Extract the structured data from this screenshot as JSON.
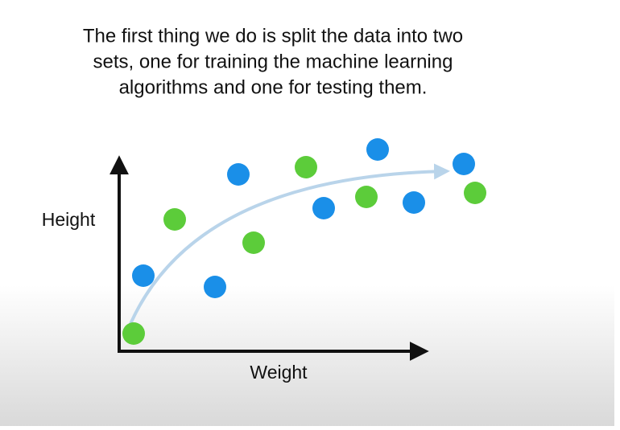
{
  "caption": {
    "lines": [
      "The first thing we do is split the data into two",
      "sets, one for training the machine learning",
      "algorithms and one for testing them."
    ]
  },
  "diagram": {
    "y_label": "Height",
    "x_label": "Weight"
  }
}
